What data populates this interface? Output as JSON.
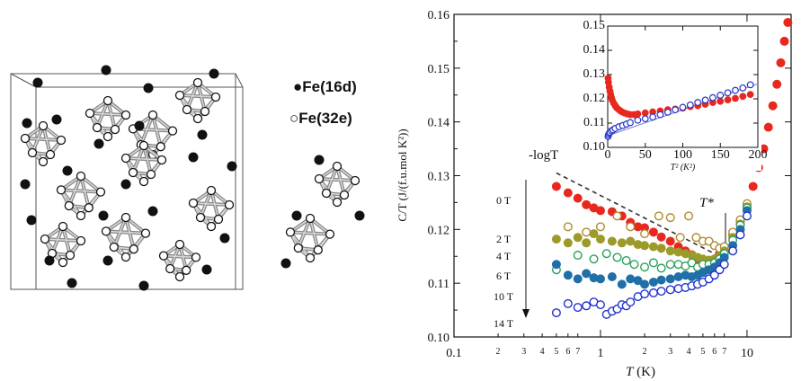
{
  "left_panel": {
    "legend": [
      {
        "symbol": "●",
        "label": "Fe(16d)"
      },
      {
        "symbol": "○",
        "label": "Fe(32e)"
      }
    ]
  },
  "chart_data": [
    {
      "type": "scatter",
      "xscale": "log",
      "xlabel_var": "T",
      "xlabel_unit": " (K)",
      "ylabel": "C/T (J/(f.u.mol K²))",
      "xlim": [
        0.1,
        20
      ],
      "ylim": [
        0.1,
        0.16
      ],
      "x_ticks": [
        {
          "v": 0.1,
          "t": "0.1"
        },
        {
          "v": 1,
          "t": "1"
        },
        {
          "v": 10,
          "t": "10"
        }
      ],
      "x_minor_ticks": [
        {
          "v": 0.2,
          "t": "2"
        },
        {
          "v": 0.3,
          "t": "3"
        },
        {
          "v": 0.4,
          "t": "4"
        },
        {
          "v": 0.5,
          "t": "5"
        },
        {
          "v": 0.6,
          "t": "6"
        },
        {
          "v": 0.7,
          "t": "7"
        },
        {
          "v": 2,
          "t": "2"
        },
        {
          "v": 3,
          "t": "3"
        },
        {
          "v": 4,
          "t": "4"
        },
        {
          "v": 5,
          "t": "5"
        },
        {
          "v": 6,
          "t": "6"
        },
        {
          "v": 7,
          "t": "7"
        }
      ],
      "y_ticks": [
        "0.10",
        "0.11",
        "0.12",
        "0.13",
        "0.14",
        "0.15",
        "0.16"
      ],
      "annotations": {
        "logT": "-logT",
        "tstar": "T*"
      },
      "series": [
        {
          "name": "0 T",
          "color": "#e8281e",
          "filled": true,
          "x": [
            0.5,
            0.6,
            0.7,
            0.8,
            0.9,
            1.0,
            1.2,
            1.4,
            1.6,
            1.8,
            2.0,
            2.3,
            2.6,
            3.0,
            3.4,
            3.8,
            4.2,
            4.6,
            5.0,
            5.5,
            6.0,
            6.5,
            7.0,
            8.0,
            9.0,
            10,
            11,
            12,
            13,
            14,
            15,
            16,
            17,
            18,
            19
          ],
          "y": [
            0.128,
            0.1268,
            0.1258,
            0.1246,
            0.124,
            0.1235,
            0.1233,
            0.1225,
            0.1213,
            0.1205,
            0.1203,
            0.1195,
            0.1186,
            0.1178,
            0.1168,
            0.116,
            0.1153,
            0.1146,
            0.114,
            0.114,
            0.1145,
            0.1155,
            0.1167,
            0.119,
            0.1215,
            0.1245,
            0.128,
            0.1315,
            0.135,
            0.139,
            0.143,
            0.147,
            0.151,
            0.155,
            0.1585
          ]
        },
        {
          "name": "2 T",
          "color": "#b08a2e",
          "filled": false,
          "x": [
            0.6,
            0.8,
            1.0,
            1.3,
            1.6,
            2.0,
            2.5,
            3.0,
            3.5,
            4.0,
            4.5,
            5.0,
            5.5,
            6.0,
            6.5,
            7.0,
            8.0,
            9.0,
            10
          ],
          "y": [
            0.1205,
            0.1195,
            0.1205,
            0.1225,
            0.1205,
            0.1192,
            0.1225,
            0.1222,
            0.1185,
            0.1225,
            0.1185,
            0.1178,
            0.1178,
            0.117,
            0.1165,
            0.1168,
            0.1195,
            0.1218,
            0.1248
          ]
        },
        {
          "name": "4 T",
          "color": "#9c9a28",
          "filled": true,
          "x": [
            0.5,
            0.6,
            0.7,
            0.8,
            0.9,
            1.0,
            1.2,
            1.4,
            1.6,
            1.8,
            2.0,
            2.3,
            2.6,
            3.0,
            3.4,
            3.8,
            4.2,
            4.6,
            5.0,
            5.5,
            6.0,
            6.5,
            7.0,
            8.0,
            9.0,
            10
          ],
          "y": [
            0.1182,
            0.1175,
            0.1185,
            0.1175,
            0.1192,
            0.1182,
            0.1178,
            0.1175,
            0.1178,
            0.1172,
            0.117,
            0.1168,
            0.1165,
            0.116,
            0.1158,
            0.1155,
            0.1152,
            0.1148,
            0.1145,
            0.1143,
            0.1145,
            0.115,
            0.116,
            0.1185,
            0.121,
            0.1242
          ]
        },
        {
          "name": "6 T",
          "color": "#2aa15a",
          "filled": false,
          "x": [
            0.5,
            0.7,
            0.9,
            1.1,
            1.3,
            1.5,
            1.7,
            2.0,
            2.3,
            2.6,
            3.0,
            3.4,
            3.8,
            4.2,
            4.6,
            5.0,
            5.5,
            6.0,
            6.5,
            7.0,
            8.0,
            9.0,
            10
          ],
          "y": [
            0.1125,
            0.1152,
            0.1145,
            0.1155,
            0.1148,
            0.1142,
            0.1135,
            0.113,
            0.1138,
            0.1128,
            0.1135,
            0.1135,
            0.1132,
            0.1138,
            0.113,
            0.1135,
            0.1135,
            0.1138,
            0.1145,
            0.1155,
            0.118,
            0.1208,
            0.124
          ]
        },
        {
          "name": "10 T",
          "color": "#1f6fa8",
          "filled": true,
          "x": [
            0.5,
            0.6,
            0.7,
            0.8,
            0.9,
            1.0,
            1.2,
            1.4,
            1.6,
            1.8,
            2.0,
            2.3,
            2.6,
            3.0,
            3.4,
            3.8,
            4.2,
            4.6,
            5.0,
            5.5,
            6.0,
            6.5,
            7.0,
            8.0,
            9.0,
            10
          ],
          "y": [
            0.1135,
            0.1115,
            0.1108,
            0.1118,
            0.111,
            0.1108,
            0.1112,
            0.1098,
            0.1108,
            0.1105,
            0.1098,
            0.1102,
            0.1106,
            0.1108,
            0.1112,
            0.1115,
            0.1112,
            0.1115,
            0.112,
            0.1125,
            0.113,
            0.1138,
            0.1148,
            0.117,
            0.12,
            0.1235
          ]
        },
        {
          "name": "14 T",
          "color": "#2233cc",
          "filled": false,
          "x": [
            0.5,
            0.6,
            0.7,
            0.8,
            0.9,
            1.0,
            1.1,
            1.2,
            1.3,
            1.4,
            1.5,
            1.6,
            1.8,
            2.0,
            2.3,
            2.6,
            3.0,
            3.4,
            3.8,
            4.2,
            4.6,
            5.0,
            5.5,
            6.0,
            6.5,
            7.0,
            8.0,
            9.0,
            10
          ],
          "y": [
            0.1045,
            0.1062,
            0.1055,
            0.1058,
            0.1065,
            0.106,
            0.1042,
            0.1048,
            0.1052,
            0.106,
            0.1058,
            0.1065,
            0.1075,
            0.108,
            0.1082,
            0.1085,
            0.1088,
            0.109,
            0.1092,
            0.1095,
            0.1098,
            0.1102,
            0.1108,
            0.1115,
            0.1125,
            0.1135,
            0.116,
            0.119,
            0.1225
          ]
        }
      ]
    },
    {
      "type": "scatter",
      "xlabel": "T² (K²)",
      "xlim": [
        0,
        200
      ],
      "ylim": [
        0.1,
        0.15
      ],
      "x_ticks": [
        "0",
        "50",
        "100",
        "150",
        "200"
      ],
      "y_ticks": [
        "0.10",
        "0.11",
        "0.12",
        "0.13",
        "0.14",
        "0.15"
      ],
      "series": [
        {
          "name": "0 T",
          "color": "#e8281e",
          "filled": true,
          "x": [
            0.5,
            1,
            2,
            3,
            4,
            5,
            6,
            8,
            10,
            12,
            15,
            18,
            22,
            26,
            30,
            35,
            40,
            50,
            60,
            70,
            80,
            90,
            100,
            110,
            120,
            130,
            140,
            150,
            160,
            170,
            180,
            190
          ],
          "y": [
            0.1285,
            0.1268,
            0.1248,
            0.1232,
            0.1218,
            0.1205,
            0.1195,
            0.1182,
            0.1172,
            0.1163,
            0.1155,
            0.1148,
            0.1142,
            0.1138,
            0.1135,
            0.1135,
            0.1138,
            0.1142,
            0.1146,
            0.115,
            0.1155,
            0.1158,
            0.1162,
            0.1168,
            0.1172,
            0.1178,
            0.1185,
            0.119,
            0.1196,
            0.1202,
            0.121,
            0.1218
          ]
        },
        {
          "name": "14 T",
          "color": "#2233cc",
          "filled": false,
          "x": [
            0.5,
            1,
            2,
            3,
            5,
            7,
            10,
            15,
            20,
            25,
            30,
            40,
            50,
            60,
            70,
            80,
            90,
            100,
            110,
            120,
            130,
            140,
            150,
            160,
            170,
            180,
            190
          ],
          "y": [
            0.1045,
            0.1052,
            0.1058,
            0.1062,
            0.1068,
            0.1072,
            0.1078,
            0.1085,
            0.109,
            0.1096,
            0.1102,
            0.1112,
            0.1118,
            0.1125,
            0.1135,
            0.1145,
            0.1155,
            0.1165,
            0.1175,
            0.1185,
            0.1195,
            0.1205,
            0.1215,
            0.1225,
            0.1235,
            0.1245,
            0.1258
          ]
        }
      ]
    }
  ]
}
